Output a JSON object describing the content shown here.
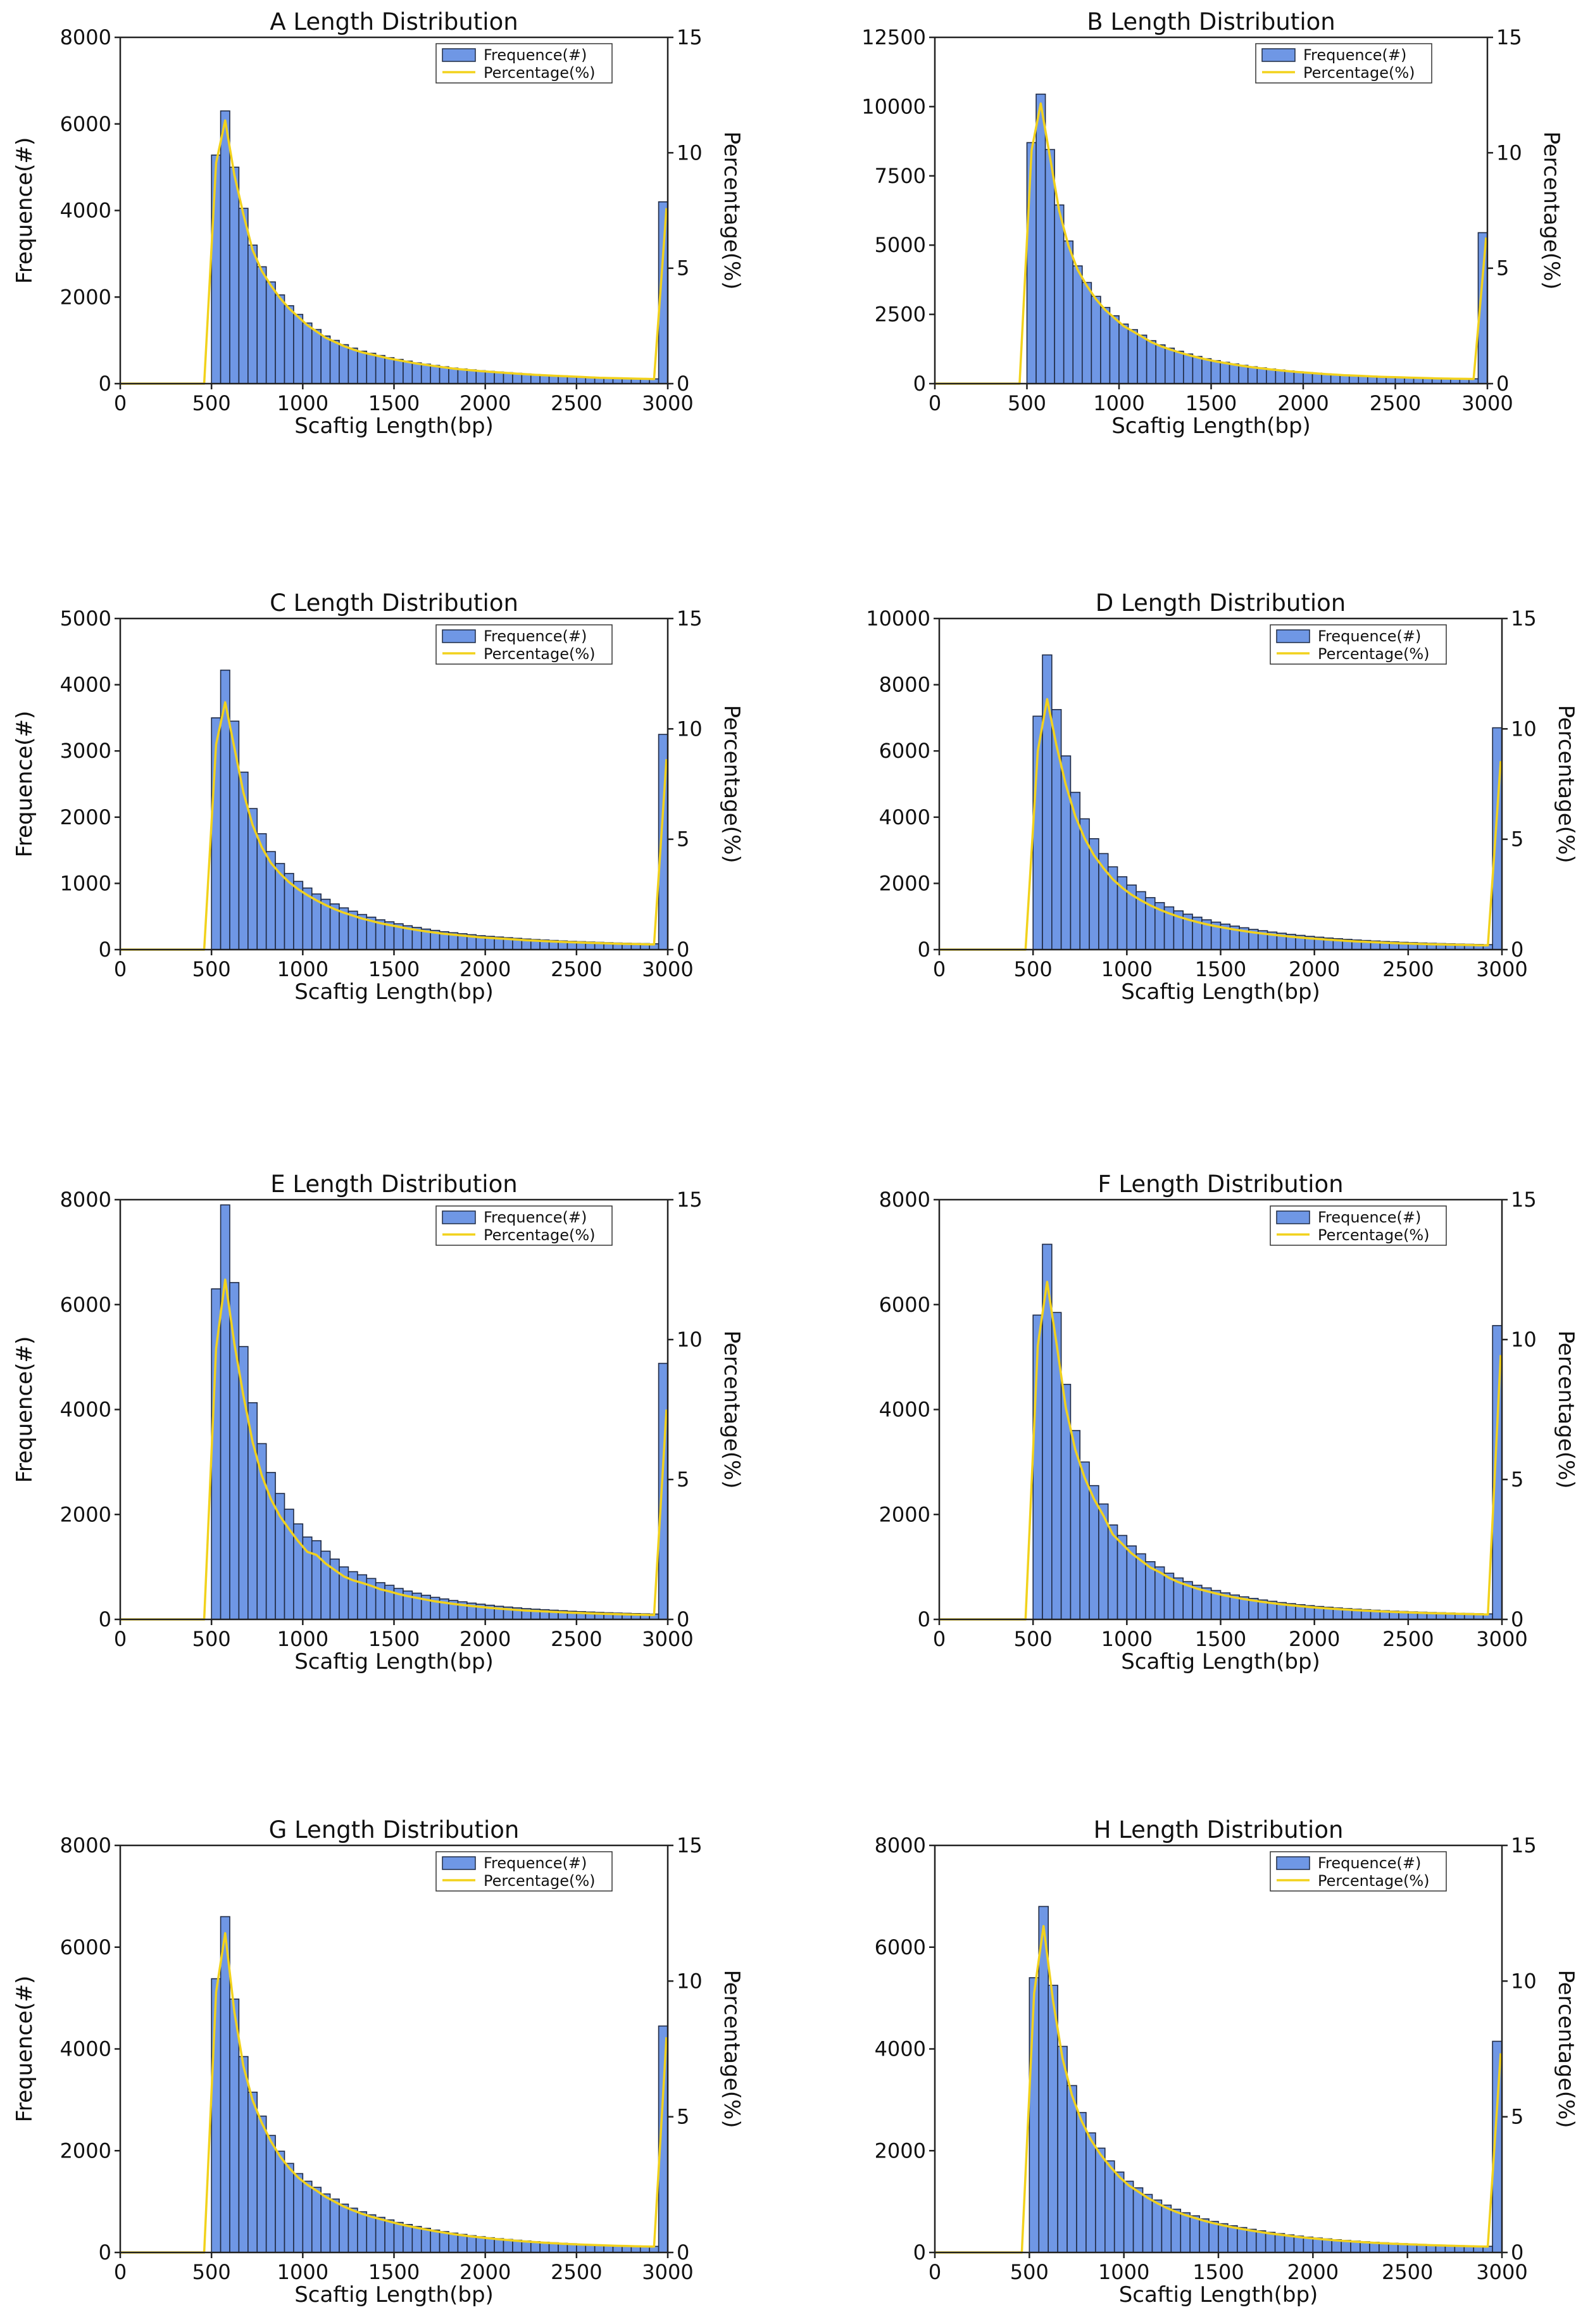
{
  "chart_data": [
    {
      "type": "bar",
      "title": "A Length Distribution",
      "xlabel": "Scaftig Length(bp)",
      "ylabel": "Frequence(#)",
      "y2label": "Percentage(%)",
      "xlim": [
        0,
        3000
      ],
      "ylim": [
        0,
        8000
      ],
      "y2lim": [
        0,
        15
      ],
      "x_ticks": [
        0,
        500,
        1000,
        1500,
        2000,
        2500,
        3000
      ],
      "y_ticks": [
        0,
        2000,
        4000,
        6000,
        8000
      ],
      "y2_ticks": [
        0,
        5,
        10,
        15
      ],
      "bar_color": "#6f97e5",
      "line_color": "#f2d21c",
      "legend": {
        "position": "top-right",
        "entries": [
          "Frequence(#)",
          "Percentage(%)"
        ]
      },
      "bin_start": 500,
      "bin_width": 50,
      "values": [
        5280,
        6300,
        5000,
        4050,
        3200,
        2700,
        2350,
        2050,
        1800,
        1600,
        1400,
        1250,
        1100,
        1000,
        900,
        820,
        750,
        700,
        650,
        600,
        560,
        520,
        480,
        450,
        420,
        390,
        360,
        340,
        320,
        300,
        285,
        270,
        255,
        240,
        225,
        210,
        200,
        190,
        180,
        170,
        160,
        150,
        140,
        135,
        130,
        125,
        120,
        115,
        110,
        4200
      ]
    },
    {
      "type": "bar",
      "title": "B Length Distribution",
      "xlabel": "Scaftig Length(bp)",
      "ylabel": "Frequence(#)",
      "y2label": "Percentage(%)",
      "xlim": [
        0,
        3000
      ],
      "ylim": [
        0,
        12500
      ],
      "y2lim": [
        0,
        15
      ],
      "x_ticks": [
        0,
        500,
        1000,
        1500,
        2000,
        2500,
        3000
      ],
      "y_ticks": [
        0,
        2500,
        5000,
        7500,
        10000,
        12500
      ],
      "y2_ticks": [
        0,
        5,
        10,
        15
      ],
      "bar_color": "#6f97e5",
      "line_color": "#f2d21c",
      "legend": {
        "position": "top-right",
        "entries": [
          "Frequence(#)",
          "Percentage(%)"
        ]
      },
      "bin_start": 500,
      "bin_width": 50,
      "values": [
        8700,
        10450,
        8450,
        6450,
        5150,
        4250,
        3650,
        3150,
        2750,
        2450,
        2150,
        1950,
        1750,
        1550,
        1400,
        1280,
        1170,
        1070,
        980,
        900,
        830,
        770,
        710,
        660,
        610,
        570,
        530,
        495,
        460,
        430,
        405,
        380,
        355,
        335,
        315,
        300,
        285,
        270,
        255,
        245,
        235,
        225,
        215,
        205,
        195,
        190,
        185,
        180,
        175,
        5450
      ]
    },
    {
      "type": "bar",
      "title": "C Length Distribution",
      "xlabel": "Scaftig Length(bp)",
      "ylabel": "Frequence(#)",
      "y2label": "Percentage(%)",
      "xlim": [
        0,
        3000
      ],
      "ylim": [
        0,
        5000
      ],
      "y2lim": [
        0,
        15
      ],
      "x_ticks": [
        0,
        500,
        1000,
        1500,
        2000,
        2500,
        3000
      ],
      "y_ticks": [
        0,
        1000,
        2000,
        3000,
        4000,
        5000
      ],
      "y2_ticks": [
        0,
        5,
        10,
        15
      ],
      "bar_color": "#6f97e5",
      "line_color": "#f2d21c",
      "legend": {
        "position": "top-right",
        "entries": [
          "Frequence(#)",
          "Percentage(%)"
        ]
      },
      "bin_start": 500,
      "bin_width": 50,
      "values": [
        3500,
        4220,
        3450,
        2680,
        2130,
        1750,
        1480,
        1300,
        1150,
        1030,
        930,
        840,
        760,
        690,
        630,
        580,
        530,
        490,
        450,
        420,
        390,
        360,
        335,
        310,
        290,
        270,
        255,
        240,
        225,
        210,
        200,
        190,
        180,
        170,
        160,
        152,
        145,
        138,
        131,
        125,
        120,
        115,
        110,
        105,
        100,
        97,
        94,
        91,
        88,
        3250
      ]
    },
    {
      "type": "bar",
      "title": "D Length Distribution",
      "xlabel": "Scaftig Length(bp)",
      "ylabel": "Frequence(#)",
      "y2label": "Percentage(%)",
      "xlim": [
        0,
        3000
      ],
      "ylim": [
        0,
        10000
      ],
      "y2lim": [
        0,
        15
      ],
      "x_ticks": [
        0,
        500,
        1000,
        1500,
        2000,
        2500,
        3000
      ],
      "y_ticks": [
        0,
        2000,
        4000,
        6000,
        8000,
        10000
      ],
      "y2_ticks": [
        0,
        5,
        10,
        15
      ],
      "bar_color": "#6f97e5",
      "line_color": "#f2d21c",
      "legend": {
        "position": "top-right",
        "entries": [
          "Frequence(#)",
          "Percentage(%)"
        ]
      },
      "bin_start": 500,
      "bin_width": 50,
      "values": [
        7050,
        8900,
        7250,
        5850,
        4750,
        3950,
        3350,
        2900,
        2500,
        2200,
        1950,
        1750,
        1570,
        1420,
        1290,
        1170,
        1070,
        980,
        900,
        830,
        770,
        710,
        660,
        610,
        570,
        530,
        495,
        460,
        430,
        400,
        375,
        350,
        330,
        310,
        290,
        275,
        260,
        245,
        232,
        220,
        210,
        200,
        190,
        182,
        175,
        168,
        162,
        156,
        150,
        6700
      ]
    },
    {
      "type": "bar",
      "title": "E Length Distribution",
      "xlabel": "Scaftig Length(bp)",
      "ylabel": "Frequence(#)",
      "y2label": "Percentage(%)",
      "xlim": [
        0,
        3000
      ],
      "ylim": [
        0,
        8000
      ],
      "y2lim": [
        0,
        15
      ],
      "x_ticks": [
        0,
        500,
        1000,
        1500,
        2000,
        2500,
        3000
      ],
      "y_ticks": [
        0,
        2000,
        4000,
        6000,
        8000
      ],
      "y2_ticks": [
        0,
        5,
        10,
        15
      ],
      "bar_color": "#6f97e5",
      "line_color": "#f2d21c",
      "legend": {
        "position": "top-right",
        "entries": [
          "Frequence(#)",
          "Percentage(%)"
        ]
      },
      "bin_start": 500,
      "bin_width": 50,
      "values": [
        6300,
        7900,
        6420,
        5200,
        4130,
        3350,
        2800,
        2400,
        2100,
        1820,
        1570,
        1500,
        1300,
        1150,
        1000,
        910,
        850,
        780,
        700,
        650,
        590,
        540,
        500,
        460,
        420,
        390,
        360,
        335,
        310,
        290,
        270,
        250,
        235,
        220,
        205,
        195,
        185,
        175,
        165,
        155,
        148,
        140,
        133,
        127,
        121,
        116,
        111,
        106,
        102,
        4880
      ]
    },
    {
      "type": "bar",
      "title": "F Length Distribution",
      "xlabel": "Scaftig Length(bp)",
      "ylabel": "Frequence(#)",
      "y2label": "Percentage(%)",
      "xlim": [
        0,
        3000
      ],
      "ylim": [
        0,
        8000
      ],
      "y2lim": [
        0,
        15
      ],
      "x_ticks": [
        0,
        500,
        1000,
        1500,
        2000,
        2500,
        3000
      ],
      "y_ticks": [
        0,
        2000,
        4000,
        6000,
        8000
      ],
      "y2_ticks": [
        0,
        5,
        10,
        15
      ],
      "bar_color": "#6f97e5",
      "line_color": "#f2d21c",
      "legend": {
        "position": "top-right",
        "entries": [
          "Frequence(#)",
          "Percentage(%)"
        ]
      },
      "bin_start": 500,
      "bin_width": 50,
      "values": [
        5800,
        7150,
        5850,
        4480,
        3600,
        3000,
        2550,
        2200,
        1800,
        1600,
        1400,
        1250,
        1100,
        1000,
        880,
        790,
        720,
        650,
        600,
        550,
        505,
        465,
        430,
        400,
        370,
        345,
        320,
        300,
        280,
        262,
        246,
        232,
        218,
        206,
        195,
        185,
        175,
        166,
        158,
        151,
        144,
        138,
        132,
        127,
        122,
        117,
        113,
        109,
        105,
        5600
      ]
    },
    {
      "type": "bar",
      "title": "G Length Distribution",
      "xlabel": "Scaftig Length(bp)",
      "ylabel": "Frequence(#)",
      "y2label": "Percentage(%)",
      "xlim": [
        0,
        3000
      ],
      "ylim": [
        0,
        8000
      ],
      "y2lim": [
        0,
        15
      ],
      "x_ticks": [
        0,
        500,
        1000,
        1500,
        2000,
        2500,
        3000
      ],
      "y_ticks": [
        0,
        2000,
        4000,
        6000,
        8000
      ],
      "y2_ticks": [
        0,
        5,
        10,
        15
      ],
      "bar_color": "#6f97e5",
      "line_color": "#f2d21c",
      "legend": {
        "position": "top-right",
        "entries": [
          "Frequence(#)",
          "Percentage(%)"
        ]
      },
      "bin_start": 500,
      "bin_width": 50,
      "values": [
        5380,
        6600,
        4980,
        3850,
        3150,
        2680,
        2300,
        1990,
        1750,
        1550,
        1400,
        1280,
        1150,
        1050,
        950,
        870,
        800,
        740,
        690,
        640,
        590,
        550,
        510,
        475,
        440,
        410,
        380,
        355,
        330,
        310,
        290,
        272,
        256,
        241,
        227,
        214,
        202,
        191,
        181,
        172,
        164,
        157,
        150,
        144,
        138,
        133,
        128,
        124,
        120,
        4450
      ]
    },
    {
      "type": "bar",
      "title": "H Length Distribution",
      "xlabel": "Scaftig Length(bp)",
      "ylabel": "Frequence(#)",
      "y2label": "Percentage(%)",
      "xlim": [
        0,
        3000
      ],
      "ylim": [
        0,
        8000
      ],
      "y2lim": [
        0,
        15
      ],
      "x_ticks": [
        0,
        500,
        1000,
        1500,
        2000,
        2500,
        3000
      ],
      "y_ticks": [
        0,
        2000,
        4000,
        6000,
        8000
      ],
      "y2_ticks": [
        0,
        5,
        10,
        15
      ],
      "bar_color": "#6f97e5",
      "line_color": "#f2d21c",
      "legend": {
        "position": "top-right",
        "entries": [
          "Frequence(#)",
          "Percentage(%)"
        ]
      },
      "bin_start": 500,
      "bin_width": 50,
      "values": [
        5400,
        6800,
        5250,
        4050,
        3280,
        2750,
        2350,
        2050,
        1800,
        1580,
        1400,
        1270,
        1140,
        1030,
        930,
        850,
        780,
        720,
        660,
        610,
        565,
        525,
        490,
        455,
        425,
        395,
        370,
        345,
        322,
        302,
        284,
        267,
        251,
        237,
        224,
        212,
        201,
        191,
        182,
        174,
        166,
        159,
        152,
        146,
        140,
        135,
        130,
        125,
        121,
        4150
      ]
    }
  ]
}
